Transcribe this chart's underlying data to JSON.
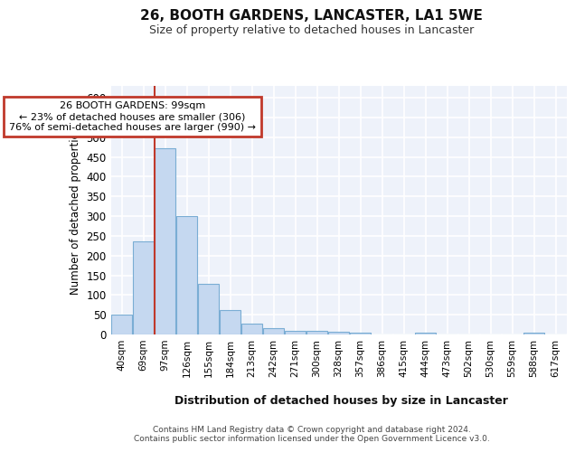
{
  "title1": "26, BOOTH GARDENS, LANCASTER, LA1 5WE",
  "title2": "Size of property relative to detached houses in Lancaster",
  "xlabel": "Distribution of detached houses by size in Lancaster",
  "ylabel": "Number of detached properties",
  "annotation_line1": "26 BOOTH GARDENS: 99sqm",
  "annotation_line2": "← 23% of detached houses are smaller (306)",
  "annotation_line3": "76% of semi-detached houses are larger (990) →",
  "bar_color": "#c5d8f0",
  "bar_edgecolor": "#7aadd4",
  "vline_color": "#c0392b",
  "annotation_box_edgecolor": "#c0392b",
  "categories": [
    "40sqm",
    "69sqm",
    "97sqm",
    "126sqm",
    "155sqm",
    "184sqm",
    "213sqm",
    "242sqm",
    "271sqm",
    "300sqm",
    "328sqm",
    "357sqm",
    "386sqm",
    "415sqm",
    "444sqm",
    "473sqm",
    "502sqm",
    "530sqm",
    "559sqm",
    "588sqm",
    "617sqm"
  ],
  "values": [
    50,
    236,
    472,
    299,
    128,
    63,
    28,
    16,
    10,
    10,
    8,
    5,
    0,
    0,
    5,
    0,
    0,
    0,
    0,
    5,
    0
  ],
  "ylim": [
    0,
    630
  ],
  "yticks": [
    0,
    50,
    100,
    150,
    200,
    250,
    300,
    350,
    400,
    450,
    500,
    550,
    600
  ],
  "vline_bin_index": 2,
  "footer1": "Contains HM Land Registry data © Crown copyright and database right 2024.",
  "footer2": "Contains public sector information licensed under the Open Government Licence v3.0.",
  "background_color": "#eef2fa",
  "grid_color": "#ffffff"
}
